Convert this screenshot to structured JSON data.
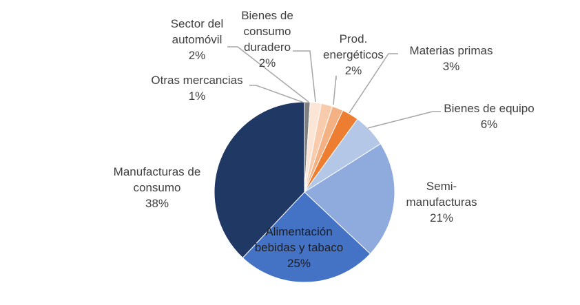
{
  "chart_data": {
    "type": "pie",
    "title": "",
    "slices": [
      {
        "label": "Otras mercancias",
        "value": 1,
        "value_label": "1%",
        "color": "#7f7f7f"
      },
      {
        "label": "Sector del automóvil",
        "value": 2,
        "value_label": "2%",
        "color": "#fbe5d6"
      },
      {
        "label": "Bienes de consumo duradero",
        "value": 2,
        "value_label": "2%",
        "color": "#f8cbad"
      },
      {
        "label": "Prod. energéticos",
        "value": 2,
        "value_label": "2%",
        "color": "#f4b183"
      },
      {
        "label": "Materias primas",
        "value": 3,
        "value_label": "3%",
        "color": "#ed7d31"
      },
      {
        "label": "Bienes de equipo",
        "value": 6,
        "value_label": "6%",
        "color": "#b4c7e7"
      },
      {
        "label": "Semi-manufacturas",
        "value": 21,
        "value_label": "21%",
        "color": "#8faadc"
      },
      {
        "label": "Alimentación bebidas y tabaco",
        "value": 25,
        "value_label": "25%",
        "color": "#4472c4"
      },
      {
        "label": "Manufacturas de consumo",
        "value": 38,
        "value_label": "38%",
        "color": "#203864"
      }
    ],
    "label_lines": [
      [
        "Otras mercancias",
        "1%"
      ],
      [
        "Sector del",
        "automóvil",
        "2%"
      ],
      [
        "Bienes de",
        "consumo",
        "duradero",
        "2%"
      ],
      [
        "Prod.",
        "energéticos",
        "2%"
      ],
      [
        "Materias primas",
        "3%"
      ],
      [
        "Bienes de equipo",
        "6%"
      ],
      [
        "Semi-",
        "manufacturas",
        "21%"
      ],
      [
        "Alimentación",
        "bebidas y tabaco",
        "25%"
      ],
      [
        "Manufacturas de",
        "consumo",
        "38%"
      ]
    ],
    "legend": "none",
    "leader_line_color": "#a6a6a6"
  }
}
